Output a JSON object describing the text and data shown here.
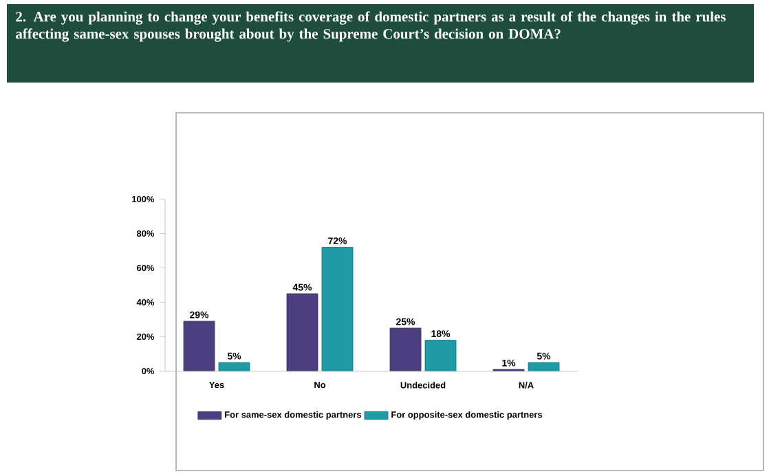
{
  "chart_data": {
    "type": "bar",
    "title": "2.  Are you planning to change your benefits coverage of domestic partners as a result of the changes in the rules affecting same-sex spouses brought about by the Supreme Court’s decision on DOMA?",
    "categories": [
      "Yes",
      "No",
      "Undecided",
      "N/A"
    ],
    "series": [
      {
        "name": "For same-sex domestic partners",
        "color": "#4e3f80",
        "values": [
          29,
          45,
          25,
          1
        ],
        "value_labels": [
          "29%",
          "45%",
          "25%",
          "1%"
        ]
      },
      {
        "name": "For opposite-sex domestic partners",
        "color": "#1f9aa6",
        "values": [
          5,
          72,
          18,
          5
        ],
        "value_labels": [
          "5%",
          "72%",
          "18%",
          "5%"
        ]
      }
    ],
    "ylim": [
      0,
      100
    ],
    "yticks": [
      {
        "value": 0,
        "label": "0%"
      },
      {
        "value": 20,
        "label": "20%"
      },
      {
        "value": 40,
        "label": "40%"
      },
      {
        "value": 60,
        "label": "60%"
      },
      {
        "value": 80,
        "label": "80%"
      },
      {
        "value": 100,
        "label": "100%"
      }
    ],
    "legend": "bottom"
  }
}
